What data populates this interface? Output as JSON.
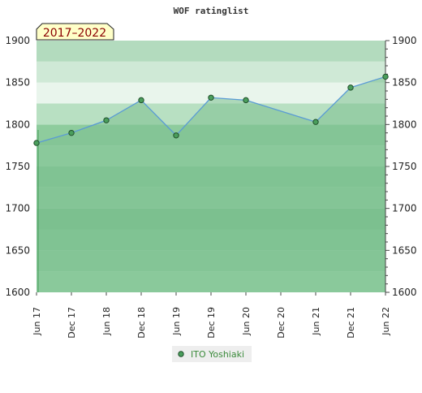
{
  "chart_data": {
    "type": "area",
    "title": "WOF ratinglist",
    "period_badge": "2017–2022",
    "categories": [
      "Jun 17",
      "Dec 17",
      "Jun 18",
      "Dec 18",
      "Jun 19",
      "Dec 19",
      "Jun 20",
      "Dec 20",
      "Jun 21",
      "Dec 21",
      "Jun 22"
    ],
    "series": [
      {
        "name": "ITO Yoshiaki",
        "points": [
          {
            "x": "Jun 17",
            "y": 1778
          },
          {
            "x": "Dec 17",
            "y": 1790
          },
          {
            "x": "Jun 18",
            "y": 1805
          },
          {
            "x": "Dec 18",
            "y": 1829
          },
          {
            "x": "Jun 19",
            "y": 1787
          },
          {
            "x": "Dec 19",
            "y": 1832
          },
          {
            "x": "Jun 20",
            "y": 1829
          },
          {
            "x": "Jun 21",
            "y": 1803
          },
          {
            "x": "Dec 21",
            "y": 1844
          },
          {
            "x": "Jun 22",
            "y": 1857
          }
        ]
      }
    ],
    "ylim": [
      1600,
      1900
    ],
    "yticks": [
      1600,
      1650,
      1700,
      1750,
      1800,
      1850,
      1900
    ],
    "xlabel": "",
    "ylabel": "",
    "grid": true,
    "legend_position": "bottom",
    "colors": {
      "line": "#5a9bd5",
      "area": "#7cc08f",
      "marker": "#4a9e5c",
      "legend_text": "#3a8a3a",
      "badge_fill": "#ffffc8",
      "badge_text": "#8b0000"
    }
  }
}
